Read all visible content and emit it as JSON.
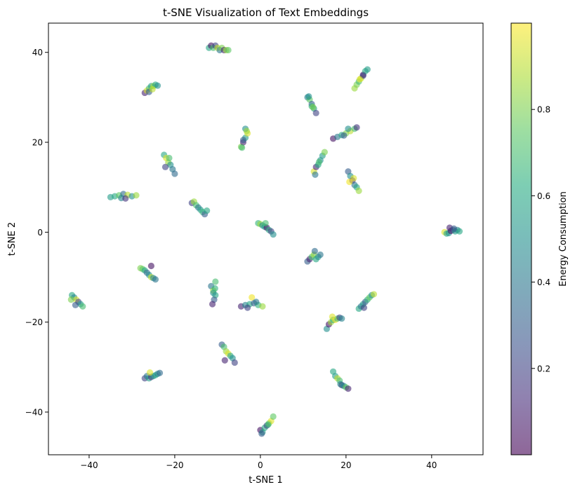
{
  "chart_data": {
    "type": "scatter",
    "title": "t-SNE Visualization of Text Embeddings",
    "xlabel": "t-SNE 1",
    "ylabel": "t-SNE 2",
    "xlim": [
      -49.5,
      52
    ],
    "ylim": [
      -49.5,
      46.5
    ],
    "xticks": [
      -40,
      -20,
      0,
      20,
      40
    ],
    "yticks": [
      -40,
      -20,
      0,
      20,
      40
    ],
    "x_tick_labels": [
      "−40",
      "−20",
      "0",
      "20",
      "40"
    ],
    "y_tick_labels": [
      "−40",
      "−20",
      "0",
      "20",
      "40"
    ],
    "grid": false,
    "marker_alpha": 0.6,
    "colormap": "viridis",
    "colorbar": {
      "label": "Energy Consumption",
      "range": [
        0.0,
        1.0
      ],
      "ticks": [
        0.2,
        0.4,
        0.6,
        0.8
      ],
      "tick_labels": [
        "0.2",
        "0.4",
        "0.6",
        "0.8"
      ]
    },
    "clusters": [
      {
        "x": [
          -12,
          -11.5,
          -11,
          -10.5,
          -10,
          -9.5,
          -9,
          -8.5,
          -8,
          -7.5
        ],
        "y": [
          41,
          41.5,
          41,
          41.5,
          41,
          40.5,
          41,
          40.5,
          40.5,
          40.5
        ],
        "c": [
          0.6,
          0.05,
          0.7,
          0.2,
          0.9,
          0.4,
          0.8,
          0.1,
          0.85,
          0.75
        ]
      },
      {
        "x": [
          -27,
          -26.5,
          -26,
          -25.5,
          -25,
          -24.5,
          -24,
          -26,
          -25.2
        ],
        "y": [
          31,
          31.5,
          32,
          32.5,
          32.5,
          32.8,
          32.6,
          31.2,
          31.8
        ],
        "c": [
          0.1,
          0.95,
          0.7,
          0.55,
          0.85,
          0.6,
          0.5,
          0.3,
          0.9
        ]
      },
      {
        "x": [
          22,
          22.5,
          23,
          23.5,
          24,
          24.5,
          25,
          24,
          23.2
        ],
        "y": [
          32,
          32.8,
          33.5,
          34.2,
          35,
          35.8,
          36.2,
          34.8,
          34
        ],
        "c": [
          0.85,
          0.8,
          0.7,
          0.9,
          0.05,
          0.6,
          0.55,
          0.2,
          0.95
        ]
      },
      {
        "x": [
          11,
          11.5,
          12,
          12.5,
          13,
          12,
          11.3,
          12.3
        ],
        "y": [
          30,
          29.5,
          28.5,
          27.5,
          26.5,
          28,
          30.2,
          27.8
        ],
        "c": [
          0.45,
          0.75,
          0.3,
          0.55,
          0.2,
          0.65,
          0.5,
          0.8
        ]
      },
      {
        "x": [
          -4.5,
          -4,
          -3.5,
          -3,
          -3.5,
          -4,
          -3.2,
          -4.3
        ],
        "y": [
          19,
          20,
          21,
          22,
          23,
          20.5,
          22.5,
          18.8
        ],
        "c": [
          0.8,
          0.1,
          0.55,
          0.95,
          0.5,
          0.3,
          0.85,
          0.7
        ]
      },
      {
        "x": [
          17,
          18,
          19,
          20,
          21,
          22,
          22.5,
          20.5,
          19.5
        ],
        "y": [
          20.8,
          21.2,
          21.6,
          22,
          22.5,
          23,
          23.3,
          23,
          21.5
        ],
        "c": [
          0.05,
          0.4,
          0.6,
          0.8,
          0.9,
          0.7,
          0.15,
          0.5,
          0.3
        ]
      },
      {
        "x": [
          -22.5,
          -22,
          -21.5,
          -21,
          -20.5,
          -20,
          -21.3,
          -22.2
        ],
        "y": [
          17.2,
          16.5,
          15.5,
          15,
          14,
          13,
          16.5,
          14.5
        ],
        "c": [
          0.6,
          0.95,
          0.85,
          0.5,
          0.4,
          0.35,
          0.7,
          0.2
        ]
      },
      {
        "x": [
          12.5,
          13,
          13.5,
          14,
          14.5,
          15,
          12.8,
          13.7
        ],
        "y": [
          13.5,
          14.5,
          15,
          16,
          17,
          17.8,
          12.8,
          15.6
        ],
        "c": [
          0.95,
          0.1,
          0.6,
          0.5,
          0.55,
          0.8,
          0.4,
          0.7
        ]
      },
      {
        "x": [
          20.5,
          21,
          21.5,
          22,
          22.5,
          23,
          21.8,
          20.8
        ],
        "y": [
          13.5,
          12.5,
          11.5,
          10.5,
          10,
          9.2,
          12,
          11.2
        ],
        "c": [
          0.3,
          0.5,
          0.1,
          0.4,
          0.6,
          0.85,
          0.95,
          0.98
        ]
      },
      {
        "x": [
          -35,
          -34,
          -33,
          -32,
          -31,
          -30,
          -29,
          -32.5,
          -31.5
        ],
        "y": [
          7.8,
          8,
          8.2,
          8.5,
          8.3,
          8,
          8.2,
          7.6,
          7.5
        ],
        "c": [
          0.55,
          0.6,
          0.75,
          0.35,
          0.9,
          0.5,
          0.85,
          0.45,
          0.15
        ]
      },
      {
        "x": [
          -16,
          -15.5,
          -15,
          -14.5,
          -14,
          -13.5,
          -13,
          -12.5
        ],
        "y": [
          6.5,
          6.8,
          6,
          5.5,
          5,
          4.5,
          4,
          4.8
        ],
        "c": [
          0.2,
          0.85,
          0.7,
          0.4,
          0.55,
          0.65,
          0.3,
          0.6
        ]
      },
      {
        "x": [
          -0.5,
          0,
          0.5,
          1,
          1.5,
          2,
          2.5,
          3,
          1.2
        ],
        "y": [
          2,
          1.8,
          1.5,
          1.2,
          1,
          0.5,
          0.2,
          -0.5,
          2
        ],
        "c": [
          0.65,
          0.85,
          0.5,
          0.55,
          0.05,
          0.6,
          0.2,
          0.5,
          0.7
        ]
      },
      {
        "x": [
          43,
          43.5,
          44,
          44.5,
          45,
          45.5,
          46,
          46.5,
          44.2,
          45.2
        ],
        "y": [
          0,
          -0.3,
          -0.2,
          0.3,
          0.5,
          0.2,
          0.5,
          0.2,
          1,
          0.8
        ],
        "c": [
          0.95,
          0.6,
          0.5,
          0.05,
          0.2,
          0.55,
          0.45,
          0.6,
          0.1,
          0.3
        ]
      },
      {
        "x": [
          11,
          11.5,
          12,
          12.5,
          13,
          13.5,
          14,
          12.7
        ],
        "y": [
          -6.5,
          -6,
          -5.5,
          -5,
          -6,
          -5.5,
          -5,
          -4.2
        ],
        "c": [
          0.3,
          0.1,
          0.7,
          0.85,
          0.6,
          0.5,
          0.4,
          0.35
        ]
      },
      {
        "x": [
          -28,
          -27.5,
          -27,
          -26.5,
          -26,
          -25.5,
          -25,
          -24.5,
          -25.5
        ],
        "y": [
          -8,
          -8.2,
          -8.5,
          -9,
          -9.5,
          -10,
          -10.2,
          -10.5,
          -7.5
        ],
        "c": [
          0.8,
          0.75,
          0.6,
          0.35,
          0.5,
          0.9,
          0.45,
          0.4,
          0.05
        ]
      },
      {
        "x": [
          -44,
          -43.5,
          -43,
          -42.5,
          -42,
          -41.5,
          -43.2,
          -44.2
        ],
        "y": [
          -14,
          -14.5,
          -15,
          -15.5,
          -16,
          -16.5,
          -16.2,
          -15
        ],
        "c": [
          0.6,
          0.45,
          0.95,
          0.2,
          0.55,
          0.7,
          0.3,
          0.8
        ]
      },
      {
        "x": [
          -11.5,
          -11,
          -10.5,
          -10.8,
          -11.2,
          -10.5,
          -11,
          -10.6
        ],
        "y": [
          -12,
          -13,
          -14,
          -15,
          -16,
          -11,
          -13.5,
          -12.5
        ],
        "c": [
          0.4,
          0.85,
          0.6,
          0.3,
          0.1,
          0.7,
          0.5,
          0.65
        ]
      },
      {
        "x": [
          -4.5,
          -3.5,
          -2.5,
          -1.5,
          -0.5,
          0.5,
          -2,
          -1,
          -3
        ],
        "y": [
          -16.5,
          -16.2,
          -16,
          -15.8,
          -16.2,
          -16.5,
          -14.5,
          -15.5,
          -16.8
        ],
        "c": [
          0.1,
          0.45,
          0.6,
          0.3,
          0.65,
          0.85,
          0.98,
          0.4,
          0.2
        ]
      },
      {
        "x": [
          23,
          23.5,
          24,
          24.5,
          25,
          25.5,
          26,
          26.5,
          24.2
        ],
        "y": [
          -17,
          -16.5,
          -16,
          -15.5,
          -15,
          -14.5,
          -14,
          -13.8,
          -16.8
        ],
        "c": [
          0.6,
          0.4,
          0.55,
          0.3,
          0.65,
          0.75,
          0.5,
          0.9,
          0.2
        ]
      },
      {
        "x": [
          15.5,
          16,
          16.5,
          17,
          17.5,
          18,
          18.5,
          19,
          16.8
        ],
        "y": [
          -21.5,
          -20.5,
          -20,
          -19.5,
          -19.5,
          -19.2,
          -19,
          -19.2,
          -18.8
        ],
        "c": [
          0.5,
          0.05,
          0.85,
          0.6,
          0.98,
          0.7,
          0.2,
          0.45,
          0.95
        ]
      },
      {
        "x": [
          -9,
          -8.5,
          -8,
          -7.5,
          -7,
          -6.5,
          -6,
          -8.3
        ],
        "y": [
          -25,
          -25.5,
          -26.5,
          -27,
          -27.5,
          -28,
          -29,
          -28.5
        ],
        "c": [
          0.3,
          0.7,
          0.85,
          0.95,
          0.6,
          0.5,
          0.2,
          0.1
        ]
      },
      {
        "x": [
          -27,
          -26.5,
          -26,
          -25.5,
          -25,
          -24.5,
          -24,
          -23.5,
          -25.8
        ],
        "y": [
          -32.5,
          -32,
          -32.5,
          -32.2,
          -32,
          -31.8,
          -31.5,
          -31.3,
          -31.2
        ],
        "c": [
          0.2,
          0.4,
          0.55,
          0.15,
          0.5,
          0.6,
          0.45,
          0.35,
          0.95
        ]
      },
      {
        "x": [
          17,
          17.5,
          18,
          18.5,
          19,
          19.5,
          20,
          20.5,
          18.7
        ],
        "y": [
          -31,
          -32,
          -32.5,
          -33,
          -34,
          -34.2,
          -34.5,
          -34.8,
          -33.8
        ],
        "c": [
          0.6,
          0.55,
          0.9,
          0.7,
          0.05,
          0.5,
          0.75,
          0.1,
          0.45
        ]
      },
      {
        "x": [
          0,
          0.5,
          1,
          1.5,
          2,
          2.5,
          3,
          0.3,
          1.8
        ],
        "y": [
          -44,
          -44.5,
          -43.5,
          -43,
          -42.5,
          -42,
          -41,
          -44.8,
          -42.8
        ],
        "c": [
          0.05,
          0.55,
          0.6,
          0.2,
          0.8,
          0.95,
          0.75,
          0.3,
          0.65
        ]
      }
    ]
  }
}
